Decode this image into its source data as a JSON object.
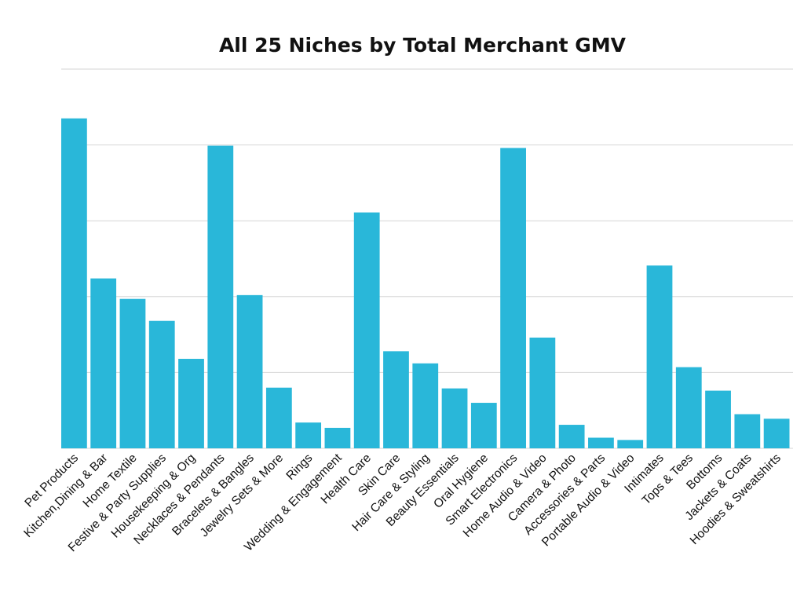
{
  "chart_data": {
    "type": "bar",
    "title": "All 25 Niches by Total Merchant GMV",
    "xlabel": "",
    "ylabel": "",
    "y_units": "relative (gridline intervals; axis unlabeled)",
    "ylim": [
      0,
      5
    ],
    "grid": true,
    "bar_color": "#29b7d9",
    "categories": [
      "Pet Products",
      "Kitchen,Dining & Bar",
      "Home Textile",
      "Festive & Party Supplies",
      "Housekeeping & Org",
      "Necklaces & Pendants",
      "Bracelets & Bangles",
      "Jewelry Sets & More",
      "Rings",
      "Wedding & Engagement",
      "Health Care",
      "Skin Care",
      "Hair Care & Styling",
      "Beauty Essentials",
      "Oral Hygiene",
      "Smart Electronics",
      "Home Audio & Video",
      "Camera & Photo",
      "Accessories & Parts",
      "Portable Audio & Video",
      "Intimates",
      "Tops & Tees",
      "Bottoms",
      "Jackets & Coats",
      "Hoodies & Sweatshirts"
    ],
    "values": [
      4.35,
      2.24,
      1.97,
      1.68,
      1.18,
      3.99,
      2.02,
      0.8,
      0.34,
      0.27,
      3.11,
      1.28,
      1.12,
      0.79,
      0.6,
      3.96,
      1.46,
      0.31,
      0.14,
      0.11,
      2.41,
      1.07,
      0.76,
      0.45,
      0.39
    ]
  }
}
